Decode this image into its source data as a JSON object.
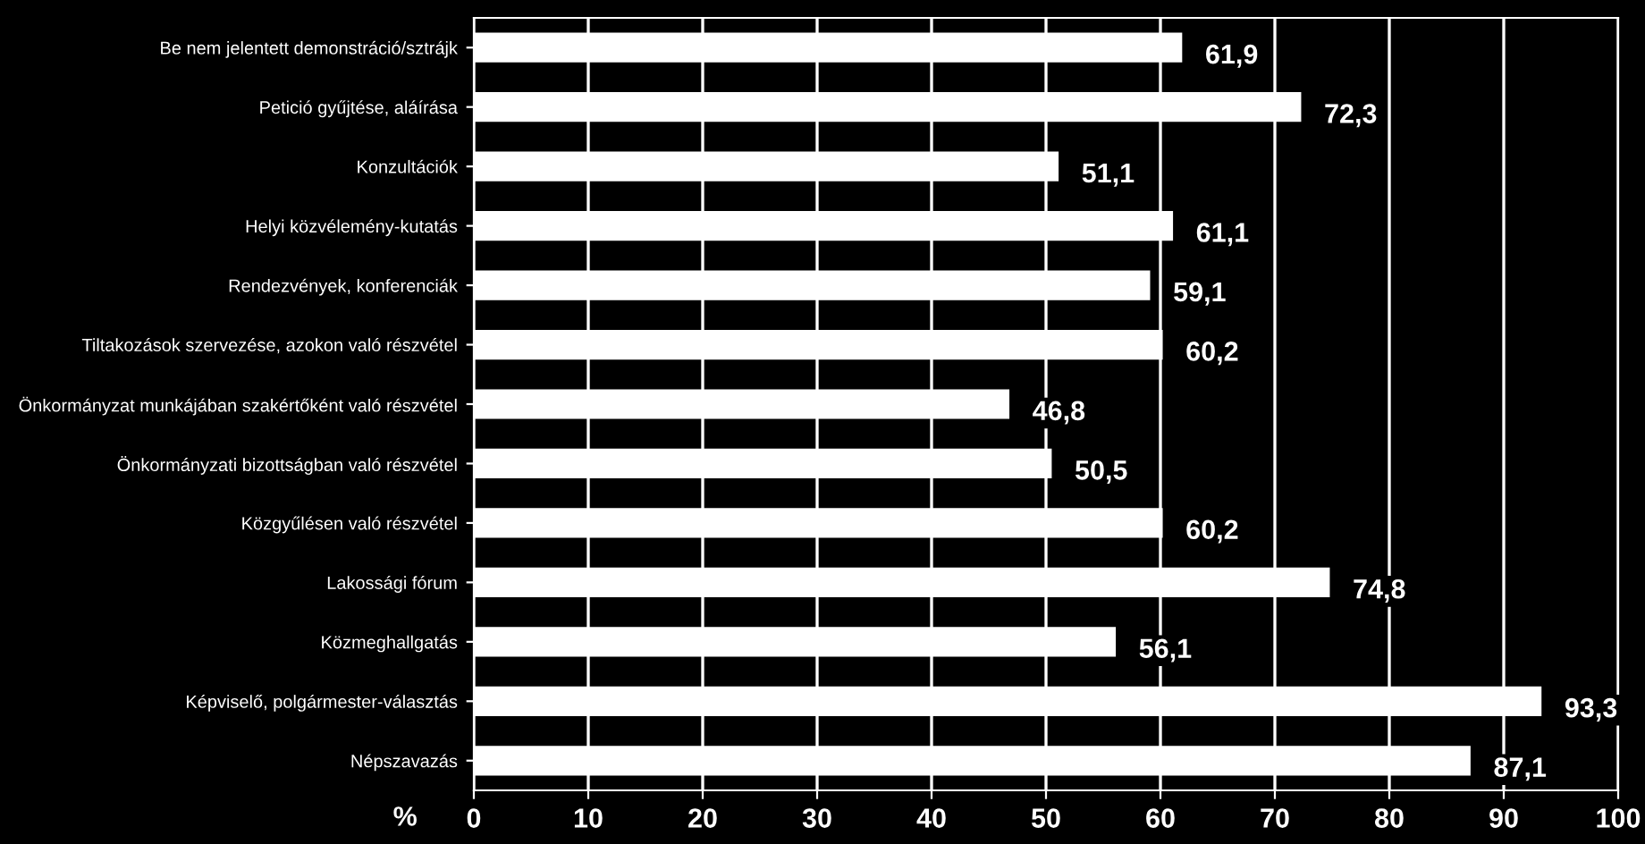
{
  "chart_data": {
    "type": "bar",
    "orientation": "horizontal",
    "xlabel": "%",
    "categories": [
      "Be nem jelentett demonstráció/sztrájk",
      "Petició gyűjtése, aláírása",
      "Konzultációk",
      "Helyi közvélemény-kutatás",
      "Rendezvények, konferenciák",
      "Tiltakozások szervezése, azokon való részvétel",
      "Önkormányzat munkájában szakértőként való részvétel",
      "Önkormányzati bizottságban való részvétel",
      "Közgyűlésen való részvétel",
      "Lakossági fórum",
      "Közmeghallgatás",
      "Képviselő, polgármester-választás",
      "Népszavazás"
    ],
    "values": [
      61.9,
      72.3,
      51.1,
      61.1,
      59.1,
      60.2,
      46.8,
      50.5,
      60.2,
      74.8,
      56.1,
      93.3,
      87.1
    ],
    "value_labels": [
      "61,9",
      "72,3",
      "51,1",
      "61,1",
      "59,1",
      "60,2",
      "46,8",
      "50,5",
      "60,2",
      "74,8",
      "56,1",
      "93,3",
      "87,1"
    ],
    "color": "#ffffff",
    "xlim": [
      0,
      100
    ],
    "xticks": [
      0,
      10,
      20,
      30,
      40,
      50,
      60,
      70,
      80,
      90,
      100
    ],
    "grid": "x"
  }
}
